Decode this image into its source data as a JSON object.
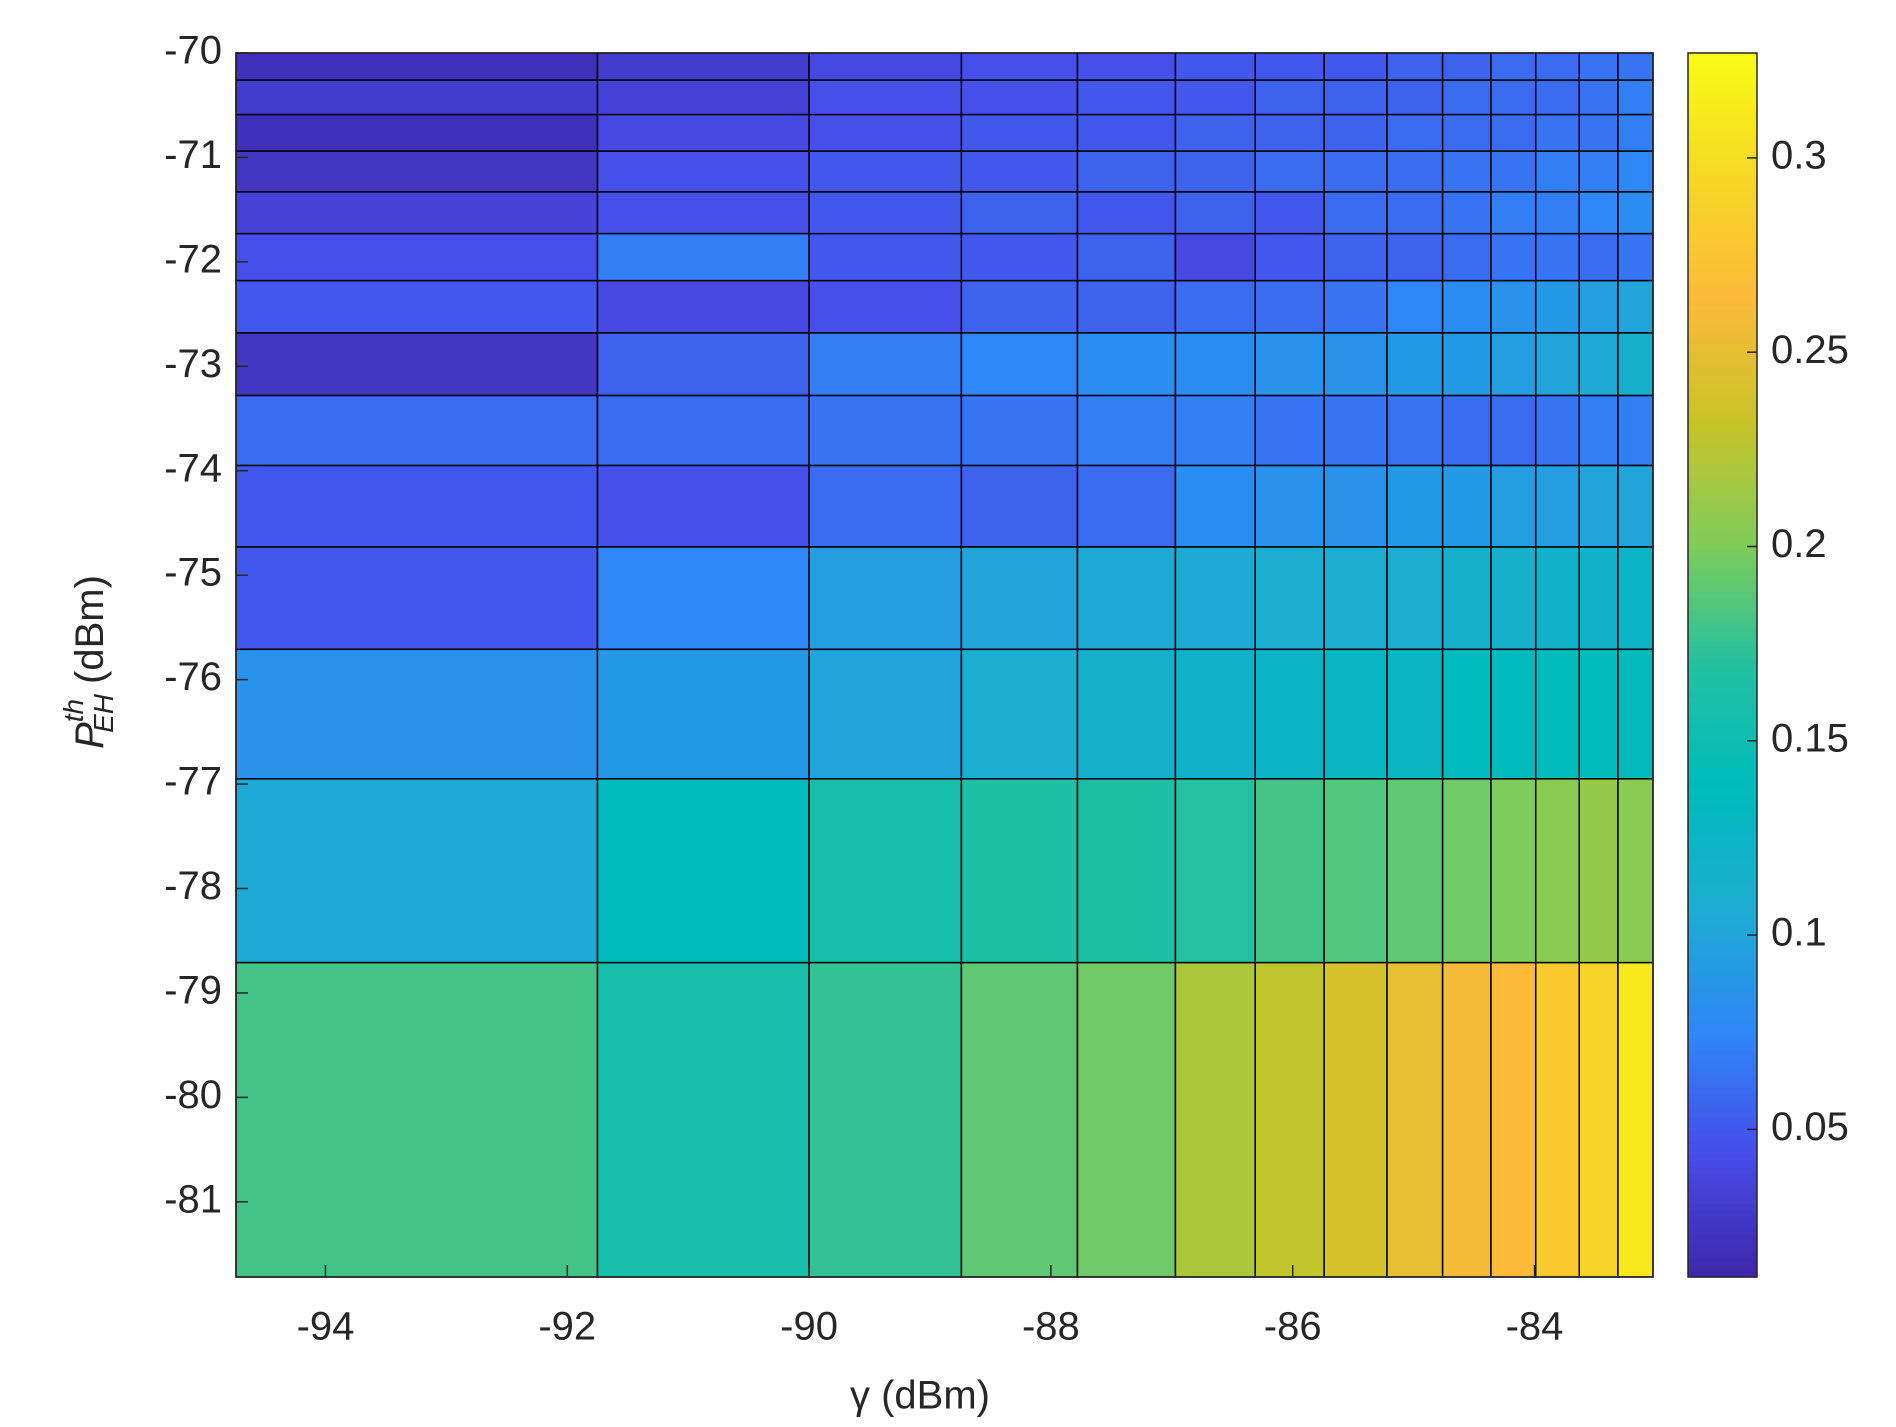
{
  "chart_data": {
    "type": "heatmap",
    "colormap": "parula",
    "xlabel": "γ (dBm)",
    "ylabel": {
      "base": "P",
      "sup": "th",
      "sub": "EH",
      "unit": "(dBm)"
    },
    "x_edges": [
      -94.74,
      -91.75,
      -90,
      -88.74,
      -87.78,
      -86.97,
      -86.31,
      -85.74,
      -85.22,
      -84.76,
      -84.36,
      -83.99,
      -83.63,
      -83.31,
      -83.02
    ],
    "y_edges": [
      -70,
      -70.26,
      -70.59,
      -70.94,
      -71.33,
      -71.73,
      -72.18,
      -72.68,
      -73.28,
      -73.95,
      -74.73,
      -75.71,
      -76.95,
      -78.71,
      -81.72
    ],
    "values": [
      [
        0.02,
        0.03,
        0.04,
        0.045,
        0.045,
        0.05,
        0.05,
        0.05,
        0.055,
        0.055,
        0.06,
        0.06,
        0.065,
        0.065
      ],
      [
        0.03,
        0.035,
        0.045,
        0.045,
        0.05,
        0.05,
        0.055,
        0.055,
        0.055,
        0.06,
        0.06,
        0.06,
        0.065,
        0.07
      ],
      [
        0.02,
        0.04,
        0.045,
        0.05,
        0.05,
        0.055,
        0.055,
        0.055,
        0.06,
        0.06,
        0.06,
        0.065,
        0.065,
        0.07
      ],
      [
        0.025,
        0.045,
        0.05,
        0.05,
        0.055,
        0.055,
        0.06,
        0.06,
        0.06,
        0.065,
        0.065,
        0.07,
        0.07,
        0.075
      ],
      [
        0.035,
        0.045,
        0.05,
        0.055,
        0.05,
        0.055,
        0.05,
        0.06,
        0.06,
        0.065,
        0.07,
        0.07,
        0.075,
        0.08
      ],
      [
        0.045,
        0.07,
        0.05,
        0.05,
        0.055,
        0.04,
        0.05,
        0.055,
        0.055,
        0.06,
        0.065,
        0.065,
        0.06,
        0.065
      ],
      [
        0.05,
        0.04,
        0.045,
        0.055,
        0.055,
        0.06,
        0.06,
        0.065,
        0.075,
        0.08,
        0.085,
        0.09,
        0.095,
        0.1
      ],
      [
        0.025,
        0.055,
        0.07,
        0.075,
        0.08,
        0.08,
        0.085,
        0.085,
        0.09,
        0.09,
        0.095,
        0.1,
        0.105,
        0.115
      ],
      [
        0.06,
        0.06,
        0.065,
        0.065,
        0.07,
        0.07,
        0.065,
        0.065,
        0.065,
        0.06,
        0.06,
        0.065,
        0.07,
        0.07
      ],
      [
        0.05,
        0.045,
        0.06,
        0.055,
        0.06,
        0.08,
        0.085,
        0.085,
        0.09,
        0.09,
        0.095,
        0.095,
        0.1,
        0.1
      ],
      [
        0.05,
        0.075,
        0.095,
        0.1,
        0.105,
        0.105,
        0.11,
        0.11,
        0.11,
        0.115,
        0.115,
        0.12,
        0.12,
        0.125
      ],
      [
        0.085,
        0.09,
        0.1,
        0.11,
        0.115,
        0.12,
        0.125,
        0.13,
        0.13,
        0.135,
        0.135,
        0.14,
        0.14,
        0.14
      ],
      [
        0.105,
        0.14,
        0.16,
        0.165,
        0.165,
        0.17,
        0.18,
        0.185,
        0.19,
        0.195,
        0.2,
        0.205,
        0.21,
        0.205
      ],
      [
        0.18,
        0.16,
        0.175,
        0.19,
        0.195,
        0.22,
        0.23,
        0.24,
        0.25,
        0.26,
        0.265,
        0.28,
        0.29,
        0.31
      ]
    ],
    "xlim": [
      -94.74,
      -83.02
    ],
    "xticks": [
      -94,
      -92,
      -90,
      -88,
      -86,
      -84
    ],
    "ylim": [
      -81.72,
      -70
    ],
    "yticks": [
      -70,
      -71,
      -72,
      -73,
      -74,
      -75,
      -76,
      -77,
      -78,
      -79,
      -80,
      -81
    ],
    "clim": [
      0.012,
      0.327
    ],
    "cticks": [
      0.05,
      0.1,
      0.15,
      0.2,
      0.25,
      0.3
    ]
  }
}
